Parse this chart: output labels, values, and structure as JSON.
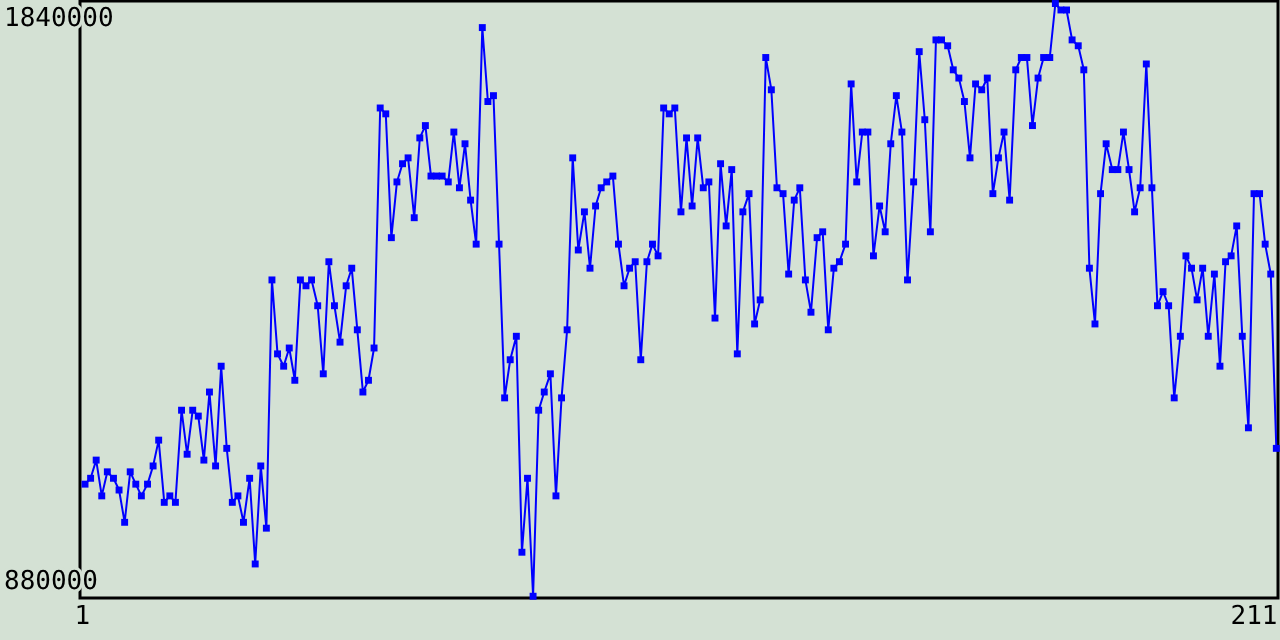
{
  "chart_data": {
    "type": "line",
    "marker": "square",
    "grid": false,
    "xlim": [
      0.6,
      215.3
    ],
    "xticks": [
      1,
      211
    ],
    "ylim": [
      853000,
      1872000
    ],
    "yticks": [
      880000,
      1840000
    ],
    "x": [
      1.5,
      2.5,
      3.5,
      4.5,
      5.5,
      6.6,
      7.6,
      8.6,
      9.6,
      10.6,
      11.6,
      12.7,
      13.7,
      14.7,
      15.7,
      16.7,
      17.7,
      18.8,
      19.8,
      20.8,
      21.8,
      22.8,
      23.8,
      24.9,
      25.9,
      26.9,
      27.9,
      28.9,
      29.9,
      31.0,
      32.0,
      33.0,
      34.0,
      35.0,
      36.0,
      37.1,
      38.1,
      39.1,
      40.1,
      41.1,
      42.1,
      43.2,
      44.2,
      45.2,
      46.2,
      47.2,
      48.3,
      49.3,
      50.3,
      51.3,
      52.3,
      53.3,
      54.4,
      55.4,
      56.4,
      57.4,
      58.4,
      59.4,
      60.5,
      61.5,
      62.5,
      63.5,
      64.5,
      65.5,
      66.6,
      67.6,
      68.6,
      69.6,
      70.6,
      71.6,
      72.7,
      73.7,
      74.7,
      75.7,
      76.7,
      77.7,
      78.8,
      79.8,
      80.8,
      81.8,
      82.8,
      83.8,
      84.9,
      85.9,
      86.9,
      87.9,
      88.9,
      89.9,
      91.0,
      92.0,
      93.0,
      94.0,
      95.0,
      96.1,
      97.1,
      98.1,
      99.1,
      100.1,
      101.1,
      102.2,
      103.2,
      104.2,
      105.2,
      106.2,
      107.2,
      108.3,
      109.3,
      110.3,
      111.3,
      112.3,
      113.3,
      114.4,
      115.4,
      116.4,
      117.4,
      118.4,
      119.4,
      120.5,
      121.5,
      122.5,
      123.5,
      124.5,
      125.5,
      126.6,
      127.6,
      128.6,
      129.6,
      130.6,
      131.6,
      132.7,
      133.7,
      134.7,
      135.7,
      136.7,
      137.8,
      138.8,
      139.8,
      140.8,
      141.8,
      142.8,
      143.9,
      144.9,
      145.9,
      146.9,
      147.9,
      148.9,
      150.0,
      151.0,
      152.0,
      153.0,
      154.0,
      155.0,
      156.1,
      157.1,
      158.1,
      159.1,
      160.1,
      161.1,
      162.2,
      163.2,
      164.2,
      165.2,
      166.2,
      167.2,
      168.3,
      169.3,
      170.3,
      171.3,
      172.3,
      173.3,
      174.4,
      175.4,
      176.4,
      177.4,
      178.4,
      179.5,
      180.5,
      181.5,
      182.5,
      183.5,
      184.5,
      185.6,
      186.6,
      187.6,
      188.6,
      189.6,
      190.6,
      191.7,
      192.7,
      193.7,
      194.7,
      195.7,
      196.7,
      197.8,
      198.8,
      199.8,
      200.8,
      201.8,
      202.8,
      203.9,
      204.9,
      205.9,
      206.9,
      207.9,
      208.9,
      210.0,
      211.0,
      212.0,
      213.0,
      214.0,
      215.0
    ],
    "series": [
      {
        "color": "#0000ff",
        "values": [
          1047000,
          1057000,
          1088000,
          1027000,
          1068000,
          1057000,
          1037000,
          982000,
          1068000,
          1047000,
          1027000,
          1047000,
          1078000,
          1122000,
          1016000,
          1027000,
          1016000,
          1173000,
          1098000,
          1173000,
          1163000,
          1088000,
          1204000,
          1078000,
          1248000,
          1108000,
          1016000,
          1027000,
          982000,
          1057000,
          911000,
          1078000,
          972000,
          1395000,
          1269000,
          1248000,
          1279000,
          1224000,
          1395000,
          1385000,
          1395000,
          1351000,
          1235000,
          1426000,
          1351000,
          1289000,
          1385000,
          1415000,
          1310000,
          1204000,
          1224000,
          1279000,
          1688000,
          1678000,
          1467000,
          1562000,
          1593000,
          1603000,
          1501000,
          1637000,
          1658000,
          1572000,
          1572000,
          1572000,
          1562000,
          1647000,
          1552000,
          1627000,
          1531000,
          1456000,
          1825000,
          1699000,
          1709000,
          1456000,
          1194000,
          1259000,
          1299000,
          931000,
          1057000,
          856000,
          1173000,
          1204000,
          1235000,
          1027000,
          1194000,
          1310000,
          1603000,
          1446000,
          1511000,
          1415000,
          1521000,
          1552000,
          1562000,
          1572000,
          1456000,
          1385000,
          1415000,
          1426000,
          1259000,
          1426000,
          1456000,
          1436000,
          1688000,
          1678000,
          1688000,
          1511000,
          1637000,
          1521000,
          1637000,
          1552000,
          1562000,
          1330000,
          1593000,
          1487000,
          1583000,
          1269000,
          1511000,
          1542000,
          1320000,
          1361000,
          1774000,
          1719000,
          1552000,
          1542000,
          1405000,
          1531000,
          1552000,
          1395000,
          1340000,
          1467000,
          1477000,
          1310000,
          1415000,
          1426000,
          1456000,
          1729000,
          1562000,
          1647000,
          1647000,
          1436000,
          1521000,
          1477000,
          1627000,
          1709000,
          1647000,
          1395000,
          1562000,
          1784000,
          1668000,
          1477000,
          1804000,
          1804000,
          1794000,
          1753000,
          1739000,
          1699000,
          1603000,
          1729000,
          1719000,
          1739000,
          1542000,
          1603000,
          1647000,
          1531000,
          1753000,
          1774000,
          1774000,
          1658000,
          1739000,
          1774000,
          1774000,
          1866000,
          1855000,
          1855000,
          1804000,
          1794000,
          1753000,
          1415000,
          1320000,
          1542000,
          1627000,
          1583000,
          1583000,
          1647000,
          1583000,
          1511000,
          1552000,
          1763000,
          1552000,
          1351000,
          1375000,
          1351000,
          1194000,
          1299000,
          1436000,
          1415000,
          1361000,
          1415000,
          1299000,
          1405000,
          1248000,
          1426000,
          1436000,
          1487000,
          1299000,
          1143000,
          1542000,
          1542000,
          1456000,
          1405000,
          1108000
        ]
      }
    ]
  }
}
